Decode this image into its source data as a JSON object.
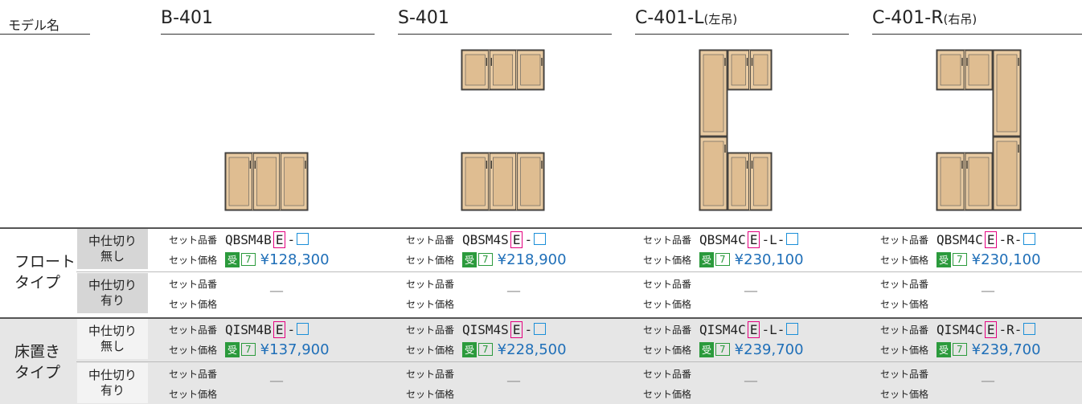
{
  "header": {
    "label": "モデル名"
  },
  "labels": {
    "code": "セット品番",
    "price": "セット価格",
    "badge": "受",
    "badge_num": "7",
    "none": "—"
  },
  "models": [
    {
      "name": "B-401"
    },
    {
      "name": "S-401"
    },
    {
      "name": "C-401-L",
      "note": "(左吊)"
    },
    {
      "name": "C-401-R",
      "note": "(右吊)"
    }
  ],
  "types": [
    {
      "name": [
        "フロート",
        "タイプ"
      ],
      "rows": [
        {
          "partition": [
            "中仕切り",
            "無し"
          ],
          "cells": [
            {
              "code": "QBSM4B",
              "option": "E",
              "tail": "-",
              "price": "¥128,300"
            },
            {
              "code": "QBSM4S",
              "option": "E",
              "tail": "-",
              "price": "¥218,900"
            },
            {
              "code": "QBSM4C",
              "option": "E",
              "tail": "-L-",
              "price": "¥230,100"
            },
            {
              "code": "QBSM4C",
              "option": "E",
              "tail": "-R-",
              "price": "¥230,100"
            }
          ]
        },
        {
          "partition": [
            "中仕切り",
            "有り"
          ]
        }
      ]
    },
    {
      "name": [
        "床置き",
        "タイプ"
      ],
      "rows": [
        {
          "partition": [
            "中仕切り",
            "無し"
          ],
          "cells": [
            {
              "code": "QISM4B",
              "option": "E",
              "tail": "-",
              "price": "¥137,900"
            },
            {
              "code": "QISM4S",
              "option": "E",
              "tail": "-",
              "price": "¥228,500"
            },
            {
              "code": "QISM4C",
              "option": "E",
              "tail": "-L-",
              "price": "¥239,700"
            },
            {
              "code": "QISM4C",
              "option": "E",
              "tail": "-R-",
              "price": "¥239,700"
            }
          ]
        },
        {
          "partition": [
            "中仕切り",
            "有り"
          ]
        }
      ]
    }
  ]
}
